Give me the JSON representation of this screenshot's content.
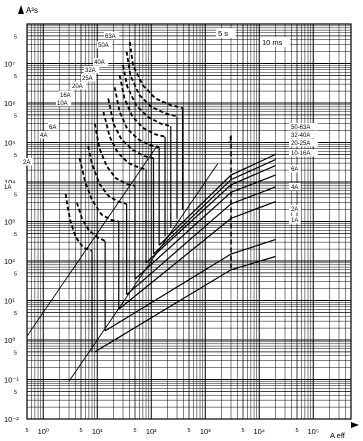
{
  "chart_data": {
    "type": "line",
    "x_scale": "log",
    "y_scale": "log",
    "xlim": [
      0.5,
      500000
    ],
    "ylim": [
      0.01,
      100000000
    ],
    "ylabel": "A²s",
    "xlabel": "A eff",
    "x_ticks": [
      {
        "value": 1,
        "label": "10⁰"
      },
      {
        "value": 10,
        "label": "10¹"
      },
      {
        "value": 100,
        "label": "10²"
      },
      {
        "value": 1000,
        "label": "10³"
      },
      {
        "value": 10000,
        "label": "10⁴"
      },
      {
        "value": 100000,
        "label": "10⁵"
      }
    ],
    "x_minor_labels": [
      "5",
      "5",
      "5",
      "5",
      "5",
      "5"
    ],
    "y_ticks": [
      {
        "value": 0.01,
        "label": "10⁻²"
      },
      {
        "value": 0.1,
        "label": "10⁻¹"
      },
      {
        "value": 1,
        "label": "10⁰"
      },
      {
        "value": 10,
        "label": "10¹"
      },
      {
        "value": 100,
        "label": "10²"
      },
      {
        "value": 1000,
        "label": "10³"
      },
      {
        "value": 10000,
        "label": "10⁴"
      },
      {
        "value": 100000,
        "label": "10⁵"
      },
      {
        "value": 1000000,
        "label": "10⁶"
      },
      {
        "value": 10000000,
        "label": "10⁷"
      }
    ],
    "y_minor_labels": [
      "5",
      "5",
      "5",
      "5",
      "5",
      "5",
      "5",
      "5",
      "5",
      "5"
    ],
    "reference_lines": [
      {
        "name": "5 s",
        "x": [
          0.5,
          130
        ],
        "y": [
          1.25,
          84500
        ]
      },
      {
        "name": "10 ms",
        "x": [
          3,
          1700
        ],
        "y": [
          0.09,
          28900
        ]
      }
    ],
    "prearcing_series": [
      {
        "name": "1A",
        "points": [
          [
            2.6,
            5000
          ],
          [
            2.8,
            2500
          ],
          [
            3.2,
            1000
          ],
          [
            4,
            400
          ],
          [
            5.5,
            220
          ],
          [
            8,
            180
          ]
        ],
        "end_x": 8,
        "end_y": 0.5
      },
      {
        "name": "2A",
        "points": [
          [
            4.2,
            3000
          ],
          [
            5.2,
            1200
          ],
          [
            7,
            600
          ],
          [
            10,
            400
          ],
          [
            14,
            320
          ]
        ],
        "end_x": 14,
        "end_y": 1.7
      },
      {
        "name": "4A",
        "points": [
          [
            4.7,
            40000
          ],
          [
            6,
            10000
          ],
          [
            8,
            3500
          ],
          [
            12,
            1500
          ],
          [
            18,
            1100
          ],
          [
            25,
            1000
          ]
        ],
        "end_x": 25,
        "end_y": 6
      },
      {
        "name": "6A",
        "points": [
          [
            6.8,
            80000
          ],
          [
            8,
            28000
          ],
          [
            11,
            9000
          ],
          [
            16,
            4500
          ],
          [
            24,
            3200
          ],
          [
            35,
            2800
          ]
        ],
        "end_x": 35,
        "end_y": 14
      },
      {
        "name": "10A",
        "points": [
          [
            9,
            300000
          ],
          [
            11,
            70000
          ],
          [
            15,
            25000
          ],
          [
            22,
            12500
          ],
          [
            35,
            9000
          ],
          [
            50,
            8000
          ]
        ],
        "end_x": 50,
        "end_y": 35
      },
      {
        "name": "16A",
        "points": [
          [
            13,
            600000
          ],
          [
            17,
            140000
          ],
          [
            24,
            55000
          ],
          [
            38,
            30000
          ],
          [
            60,
            23000
          ],
          [
            80,
            21000
          ]
        ],
        "end_x": 80,
        "end_y": 90
      },
      {
        "name": "20A",
        "points": [
          [
            16,
            1300000
          ],
          [
            20,
            300000
          ],
          [
            28,
            120000
          ],
          [
            45,
            65000
          ],
          [
            75,
            45000
          ],
          [
            110,
            40000
          ]
        ],
        "end_x": 110,
        "end_y": 150
      },
      {
        "name": "25A",
        "points": [
          [
            21,
            2500000
          ],
          [
            26,
            600000
          ],
          [
            36,
            220000
          ],
          [
            58,
            120000
          ],
          [
            95,
            85000
          ],
          [
            140,
            75000
          ]
        ],
        "end_x": 140,
        "end_y": 250
      },
      {
        "name": "32A",
        "points": [
          [
            26,
            5000000
          ],
          [
            32,
            1300000
          ],
          [
            45,
            450000
          ],
          [
            72,
            230000
          ],
          [
            120,
            160000
          ],
          [
            180,
            140000
          ]
        ],
        "end_x": 180,
        "end_y": 420
      },
      {
        "name": "40A",
        "points": [
          [
            30,
            9000000
          ],
          [
            36,
            2600000
          ],
          [
            52,
            900000
          ],
          [
            85,
            450000
          ],
          [
            150,
            300000
          ],
          [
            230,
            260000
          ]
        ],
        "end_x": 230,
        "end_y": 700
      },
      {
        "name": "50A",
        "points": [
          [
            35,
            20000000
          ],
          [
            41,
            5000000
          ],
          [
            60,
            1600000
          ],
          [
            100,
            800000
          ],
          [
            180,
            550000
          ],
          [
            300,
            460000
          ]
        ],
        "end_x": 300,
        "end_y": 1200
      },
      {
        "name": "63A",
        "points": [
          [
            40,
            35000000
          ],
          [
            46,
            9000000
          ],
          [
            70,
            2800000
          ],
          [
            120,
            1300000
          ],
          [
            220,
            900000
          ],
          [
            380,
            750000
          ]
        ],
        "end_x": 380,
        "end_y": 2000
      }
    ],
    "letthrough_series": [
      {
        "name": "1A",
        "x": [
          9,
          3000,
          20000
        ],
        "y": [
          0.5,
          60,
          130
        ]
      },
      {
        "name": "2A",
        "x": [
          14,
          3000,
          20000
        ],
        "y": [
          1.7,
          150,
          350
        ]
      },
      {
        "name": "4A",
        "x": [
          25,
          3000,
          20000
        ],
        "y": [
          6,
          1200,
          3200
        ]
      },
      {
        "name": "6A",
        "x": [
          35,
          3000,
          20000
        ],
        "y": [
          14,
          2800,
          7500
        ]
      },
      {
        "name": "10-16A",
        "x": [
          50,
          3000,
          20000
        ],
        "y": [
          35,
          5500,
          15000
        ]
      },
      {
        "name": "20-25A",
        "x": [
          80,
          3000,
          20000
        ],
        "y": [
          90,
          8500,
          26000
        ]
      },
      {
        "name": "32-40A",
        "x": [
          110,
          3000,
          20000
        ],
        "y": [
          150,
          11500,
          37000
        ]
      },
      {
        "name": "50-63A",
        "x": [
          140,
          3000,
          20000
        ],
        "y": [
          250,
          15000,
          50000
        ]
      }
    ],
    "dashed_marker": {
      "label": "1",
      "x": 3000
    }
  }
}
